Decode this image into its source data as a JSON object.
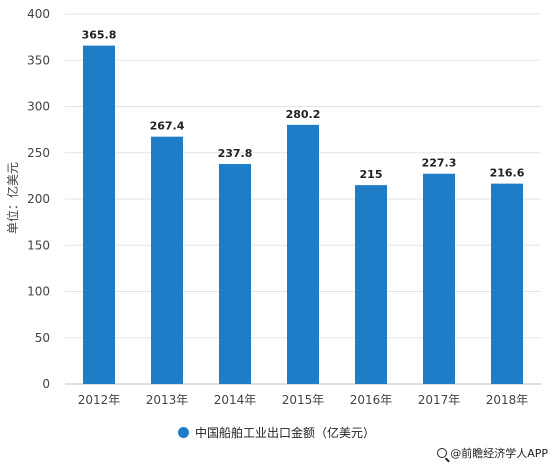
{
  "chart_data": {
    "type": "bar",
    "categories": [
      "2012年",
      "2013年",
      "2014年",
      "2015年",
      "2016年",
      "2017年",
      "2018年"
    ],
    "values": [
      365.8,
      267.4,
      237.8,
      280.2,
      215,
      227.3,
      216.6
    ],
    "value_labels": [
      "365.8",
      "267.4",
      "237.8",
      "280.2",
      "215",
      "227.3",
      "216.6"
    ],
    "title": "",
    "xlabel": "",
    "ylabel": "单位：亿美元",
    "ylim": [
      0,
      400
    ],
    "yticks": [
      0,
      50,
      100,
      150,
      200,
      250,
      300,
      350,
      400
    ],
    "grid": true,
    "legend_position": "bottom",
    "series": [
      {
        "name": "中国船舶工业出口金额（亿美元）",
        "color": "#1f7dc7"
      }
    ]
  },
  "legend": {
    "label": "中国船舶工业出口金额（亿美元）",
    "color": "#1f7dc7"
  },
  "source": {
    "text": "@前瞻经济学人APP",
    "icon": "search-icon"
  }
}
